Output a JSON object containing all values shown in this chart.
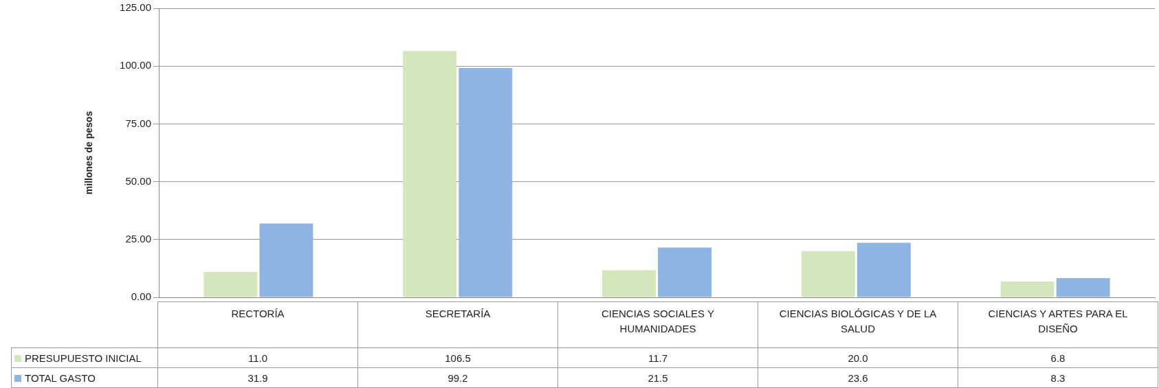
{
  "chart_data": {
    "type": "bar",
    "ylabel": "millones de pesos",
    "categories": [
      "RECTORÍA",
      "SECRETARÍA",
      "CIENCIAS SOCIALES Y HUMANIDADES",
      "CIENCIAS BIOLÓGICAS Y DE LA SALUD",
      "CIENCIAS Y ARTES PARA EL DISEÑO"
    ],
    "series": [
      {
        "name": "PRESUPUESTO INICIAL",
        "color": "#d3e6bc",
        "values": [
          11.0,
          106.5,
          11.7,
          20.0,
          6.8
        ],
        "value_labels": [
          "11.0",
          "106.5",
          "11.7",
          "20.0",
          "6.8"
        ]
      },
      {
        "name": "TOTAL GASTO",
        "color": "#8eb4e3",
        "values": [
          31.9,
          99.2,
          21.5,
          23.6,
          8.3
        ],
        "value_labels": [
          "31.9",
          "99.2",
          "21.5",
          "23.6",
          "8.3"
        ]
      }
    ],
    "ylim": [
      0,
      125
    ],
    "yticks": [
      {
        "value": 0,
        "label": "0.00"
      },
      {
        "value": 25,
        "label": "25.00"
      },
      {
        "value": 50,
        "label": "50.00"
      },
      {
        "value": 75,
        "label": "75.00"
      },
      {
        "value": 100,
        "label": "100.00"
      },
      {
        "value": 125,
        "label": "125.00"
      }
    ],
    "grid": "y",
    "legend": "bottom"
  }
}
